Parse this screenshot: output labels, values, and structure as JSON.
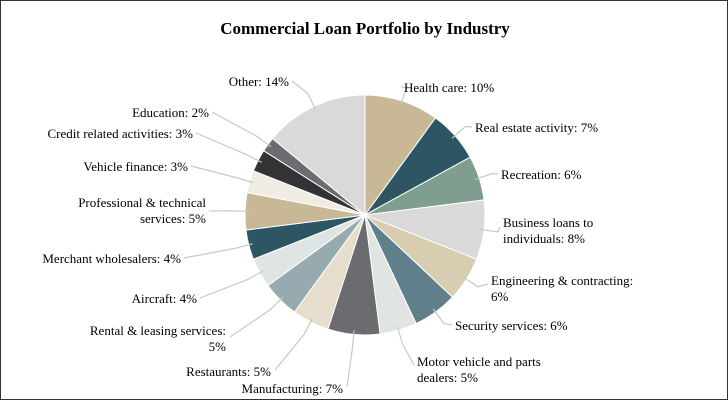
{
  "chart_data": {
    "type": "pie",
    "title": "Commercial Loan Portfolio by Industry",
    "unit": "%",
    "slices": [
      {
        "label": "Health care: 10%",
        "value": 10,
        "color": "#c8b896"
      },
      {
        "label": "Real estate activity: 7%",
        "value": 7,
        "color": "#2d5563"
      },
      {
        "label": "Recreation: 6%",
        "value": 6,
        "color": "#7f9e8f"
      },
      {
        "label": "Business loans to individuals: 8%",
        "value": 8,
        "color": "#d9d9d9"
      },
      {
        "label": "Engineering & contracting: 6%",
        "value": 6,
        "color": "#d8ccb1"
      },
      {
        "label": "Security services: 6%",
        "value": 6,
        "color": "#607f8a"
      },
      {
        "label": "Motor vehicle and parts dealers: 5%",
        "value": 5,
        "color": "#e0e5e4"
      },
      {
        "label": "Manufacturing: 7%",
        "value": 7,
        "color": "#6b6c70"
      },
      {
        "label": "Restaurants: 5%",
        "value": 5,
        "color": "#e6ddcc"
      },
      {
        "label": "Rental & leasing services: 5%",
        "value": 5,
        "color": "#97aab0"
      },
      {
        "label": "Aircraft: 4%",
        "value": 4,
        "color": "#dfe5e4"
      },
      {
        "label": "Merchant wholesalers: 4%",
        "value": 4,
        "color": "#2d5563"
      },
      {
        "label": "Professional & technical services: 5%",
        "value": 5,
        "color": "#c8b896"
      },
      {
        "label": "Vehicle finance: 3%",
        "value": 3,
        "color": "#f1ece3"
      },
      {
        "label": "Credit related activities: 3%",
        "value": 3,
        "color": "#333335"
      },
      {
        "label": "Education: 2%",
        "value": 2,
        "color": "#6b6c70"
      },
      {
        "label": "Other: 14%",
        "value": 14,
        "color": "#d9d9d9"
      }
    ],
    "label_lines": [
      [
        "Health care: 10%"
      ],
      [
        "Real estate activity: 7%"
      ],
      [
        "Recreation: 6%"
      ],
      [
        "Business loans to",
        "individuals: 8%"
      ],
      [
        "Engineering & contracting:",
        "6%"
      ],
      [
        "Security services: 6%"
      ],
      [
        "Motor vehicle and parts",
        "dealers: 5%"
      ],
      [
        "Manufacturing: 7%"
      ],
      [
        "Restaurants: 5%"
      ],
      [
        "Rental & leasing services:",
        "5%"
      ],
      [
        "Aircraft: 4%"
      ],
      [
        "Merchant wholesalers: 4%"
      ],
      [
        "Professional & technical",
        "services: 5%"
      ],
      [
        "Vehicle finance: 3%"
      ],
      [
        "Credit related activities: 3%"
      ],
      [
        "Education: 2%"
      ],
      [
        "Other: 14%"
      ]
    ],
    "legend": "none"
  }
}
